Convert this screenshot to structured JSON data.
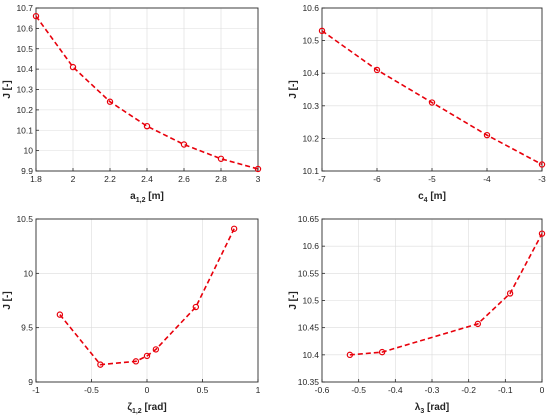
{
  "colors": {
    "series": "#e8000b",
    "axis": "#262626",
    "grid": "#dcdcdc"
  },
  "chart_data": [
    {
      "type": "line",
      "xlabel": {
        "base": "a",
        "sub": "1,2",
        "suffix": " [m]"
      },
      "ylabel": "J [-]",
      "xlim": [
        1.8,
        3
      ],
      "ylim": [
        9.9,
        10.7
      ],
      "xticks": [
        1.8,
        2,
        2.2,
        2.4,
        2.6,
        2.8,
        3
      ],
      "xticklabels": [
        "1.8",
        "2",
        "2.2",
        "2.4",
        "2.6",
        "2.8",
        "3"
      ],
      "yticks": [
        9.9,
        10,
        10.1,
        10.2,
        10.3,
        10.4,
        10.5,
        10.6,
        10.7
      ],
      "yticklabels": [
        "9.9",
        "10",
        "10.1",
        "10.2",
        "10.3",
        "10.4",
        "10.5",
        "10.6",
        "10.7"
      ],
      "grid": true,
      "x": [
        1.8,
        2.0,
        2.2,
        2.4,
        2.6,
        2.8,
        3.0
      ],
      "y": [
        10.66,
        10.41,
        10.24,
        10.12,
        10.03,
        9.96,
        9.91
      ]
    },
    {
      "type": "line",
      "xlabel": {
        "base": "c",
        "sub": "4",
        "suffix": " [m]"
      },
      "ylabel": "J [-]",
      "xlim": [
        -7,
        -3
      ],
      "ylim": [
        10.1,
        10.6
      ],
      "xticks": [
        -7,
        -6,
        -5,
        -4,
        -3
      ],
      "xticklabels": [
        "-7",
        "-6",
        "-5",
        "-4",
        "-3"
      ],
      "yticks": [
        10.1,
        10.2,
        10.3,
        10.4,
        10.5,
        10.6
      ],
      "yticklabels": [
        "10.1",
        "10.2",
        "10.3",
        "10.4",
        "10.5",
        "10.6"
      ],
      "grid": true,
      "x": [
        -7,
        -6,
        -5,
        -4,
        -3
      ],
      "y": [
        10.53,
        10.41,
        10.31,
        10.21,
        10.12
      ]
    },
    {
      "type": "line",
      "xlabel": {
        "base": "ζ",
        "sub": "1,2",
        "suffix": " [rad]"
      },
      "ylabel": "J [-]",
      "xlim": [
        -1,
        1
      ],
      "ylim": [
        9,
        10.5
      ],
      "xticks": [
        -1,
        -0.5,
        0,
        0.5,
        1
      ],
      "xticklabels": [
        "-1",
        "-0.5",
        "0",
        "0.5",
        "1"
      ],
      "yticks": [
        9,
        9.5,
        10,
        10.5
      ],
      "yticklabels": [
        "9",
        "9.5",
        "10",
        "10.5"
      ],
      "grid": true,
      "x": [
        -0.785,
        -0.42,
        -0.1,
        0.0,
        0.08,
        0.44,
        0.785
      ],
      "y": [
        9.62,
        9.16,
        9.19,
        9.24,
        9.3,
        9.69,
        10.41
      ]
    },
    {
      "type": "line",
      "xlabel": {
        "base": "λ",
        "sub": "3",
        "suffix": " [rad]"
      },
      "ylabel": "J [-]",
      "xlim": [
        -0.6,
        0
      ],
      "ylim": [
        10.35,
        10.65
      ],
      "xticks": [
        -0.6,
        -0.5,
        -0.4,
        -0.3,
        -0.2,
        -0.1,
        0
      ],
      "xticklabels": [
        "-0.6",
        "-0.5",
        "-0.4",
        "-0.3",
        "-0.2",
        "-0.1",
        "0"
      ],
      "yticks": [
        10.35,
        10.4,
        10.45,
        10.5,
        10.55,
        10.6,
        10.65
      ],
      "yticklabels": [
        "10.35",
        "10.4",
        "10.45",
        "10.5",
        "10.55",
        "10.6",
        "10.65"
      ],
      "grid": true,
      "x": [
        -0.524,
        -0.436,
        -0.175,
        -0.087,
        0.0
      ],
      "y": [
        10.4,
        10.405,
        10.457,
        10.513,
        10.623
      ]
    }
  ]
}
